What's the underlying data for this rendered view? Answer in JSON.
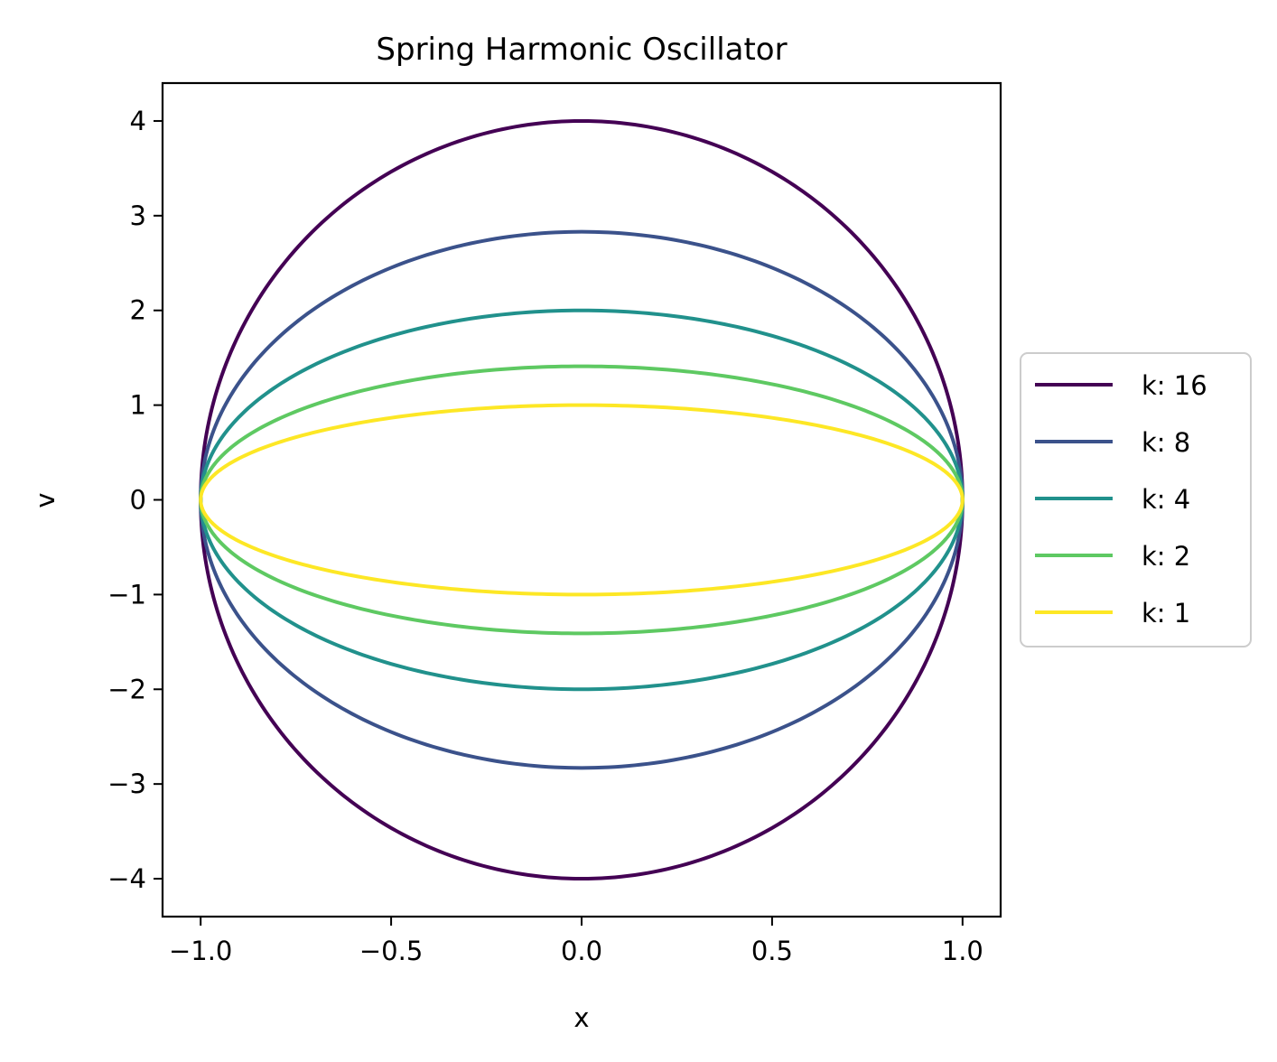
{
  "chart_data": {
    "type": "line",
    "title": "Spring Harmonic Oscillator",
    "xlabel": "x",
    "ylabel": "v",
    "xlim": [
      -1.1,
      1.1
    ],
    "ylim": [
      -4.4,
      4.4
    ],
    "xticks": [
      -1.0,
      -0.5,
      0.0,
      0.5,
      1.0
    ],
    "xtick_labels": [
      "−1.0",
      "−0.5",
      "0.0",
      "0.5",
      "1.0"
    ],
    "yticks": [
      -4,
      -3,
      -2,
      -1,
      0,
      1,
      2,
      3,
      4
    ],
    "ytick_labels": [
      "−4",
      "−3",
      "−2",
      "−1",
      "0",
      "1",
      "2",
      "3",
      "4"
    ],
    "grid": false,
    "legend_position": "center-left outside right",
    "series": [
      {
        "name": "k: 16",
        "k": 16,
        "amplitude": 1.0,
        "v_max": 4.0,
        "color": "#440154"
      },
      {
        "name": "k: 8",
        "k": 8,
        "amplitude": 1.0,
        "v_max": 2.83,
        "color": "#3b528b"
      },
      {
        "name": "k: 4",
        "k": 4,
        "amplitude": 1.0,
        "v_max": 2.0,
        "color": "#21918c"
      },
      {
        "name": "k: 2",
        "k": 2,
        "amplitude": 1.0,
        "v_max": 1.41,
        "color": "#5ec962"
      },
      {
        "name": "k: 1",
        "k": 1,
        "amplitude": 1.0,
        "v_max": 1.0,
        "color": "#fde725"
      }
    ]
  }
}
